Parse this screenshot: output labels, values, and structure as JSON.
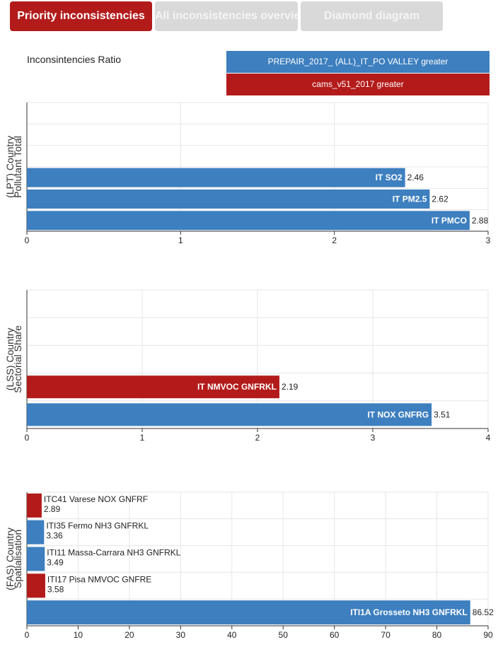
{
  "tabs": [
    {
      "label": "Priority inconsistencies",
      "active": true
    },
    {
      "label": "All inconsistencies overview",
      "active": false
    },
    {
      "label": "Diamond diagram",
      "active": false
    }
  ],
  "ratio_label": "Inconsintencies Ratio",
  "legend": [
    {
      "label": "PREPAIR_2017_ (ALL)_IT_PO VALLEY greater",
      "color": "#3d7fbf"
    },
    {
      "label": "cams_v51_2017 greater",
      "color": "#b31b1b"
    }
  ],
  "colors": {
    "blue": "#3d7fbf",
    "red": "#b31b1b",
    "grid": "#e6e6e6"
  },
  "chart_data": [
    {
      "type": "bar",
      "orientation": "horizontal",
      "ylabel_lines": [
        "(LPT) Country",
        "Pollutant Total"
      ],
      "xlim": [
        0,
        3
      ],
      "xticks": [
        0,
        1,
        2,
        3
      ],
      "slots": 6,
      "bars": [
        {
          "slot": 3,
          "label": "IT SO2",
          "value": 2.46,
          "value_label": "2.46",
          "series": "blue"
        },
        {
          "slot": 4,
          "label": "IT PM2.5",
          "value": 2.62,
          "value_label": "2.62",
          "series": "blue"
        },
        {
          "slot": 5,
          "label": "IT PMCO",
          "value": 2.88,
          "value_label": "2.88",
          "series": "blue"
        }
      ]
    },
    {
      "type": "bar",
      "orientation": "horizontal",
      "ylabel_lines": [
        "(LSS) Country",
        "Sectorial Share"
      ],
      "xlim": [
        0,
        4
      ],
      "xticks": [
        0,
        1,
        2,
        3,
        4
      ],
      "slots": 5,
      "bars": [
        {
          "slot": 3,
          "label": "IT NMVOC GNFRKL",
          "value": 2.19,
          "value_label": "2.19",
          "series": "red"
        },
        {
          "slot": 4,
          "label": "IT NOX GNFRG",
          "value": 3.51,
          "value_label": "3.51",
          "series": "blue"
        }
      ]
    },
    {
      "type": "bar",
      "orientation": "horizontal",
      "ylabel_lines": [
        "(FAS) Country",
        "Spatialisation"
      ],
      "xlim": [
        0,
        90
      ],
      "xticks": [
        0,
        10,
        20,
        30,
        40,
        50,
        60,
        70,
        80,
        90
      ],
      "slots": 5,
      "bars": [
        {
          "slot": 0,
          "label": "ITC41 Varese NOX GNFRF",
          "value": 2.89,
          "value_label": "2.89",
          "series": "red"
        },
        {
          "slot": 1,
          "label": "ITI35 Fermo NH3 GNFRKL",
          "value": 3.36,
          "value_label": "3.36",
          "series": "blue"
        },
        {
          "slot": 2,
          "label": "ITI11 Massa-Carrara NH3 GNFRKL",
          "value": 3.49,
          "value_label": "3.49",
          "series": "blue"
        },
        {
          "slot": 3,
          "label": "ITI17 Pisa NMVOC GNFRE",
          "value": 3.58,
          "value_label": "3.58",
          "series": "red"
        },
        {
          "slot": 4,
          "label": "ITI1A Grosseto NH3 GNFRKL",
          "value": 86.52,
          "value_label": "86.52",
          "series": "blue"
        }
      ]
    }
  ]
}
